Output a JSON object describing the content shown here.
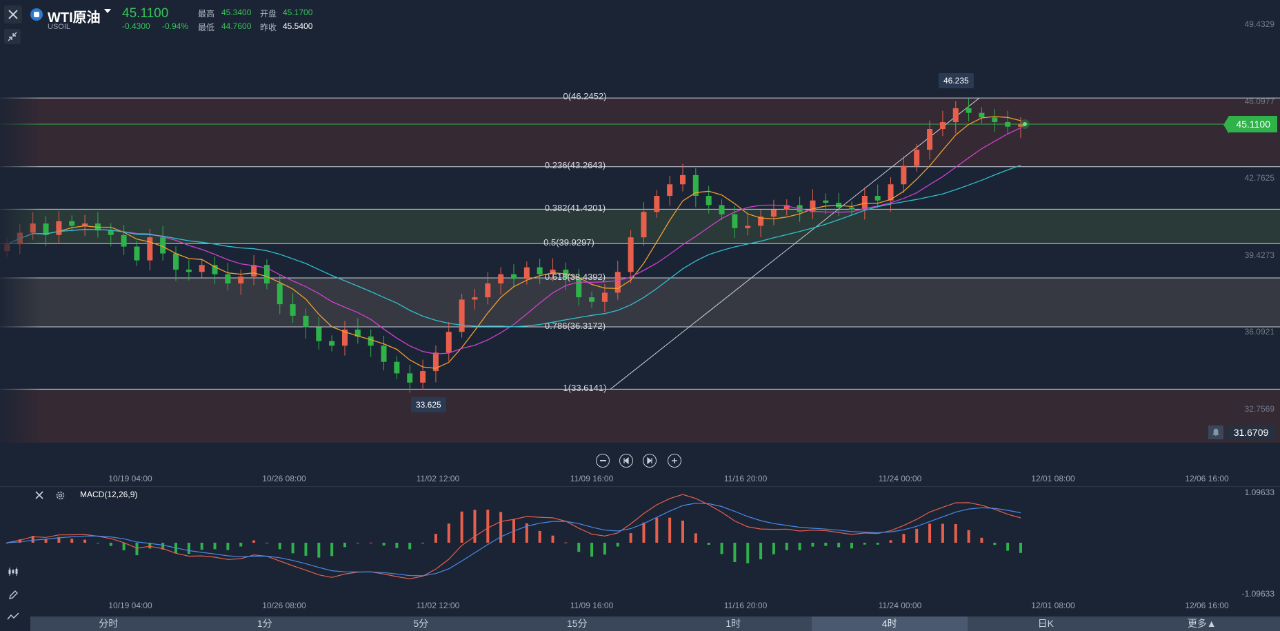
{
  "header": {
    "title": "WTI原油",
    "symbol": "USOIL",
    "price": "45.1100",
    "change": "-0.4300",
    "change_pct": "-0.94%",
    "high_label": "最高",
    "high_value": "45.3400",
    "open_label": "开盘",
    "open_value": "45.1700",
    "low_label": "最低",
    "low_value": "44.7600",
    "prev_close_label": "昨收",
    "prev_close_value": "45.5400"
  },
  "y_axis": [
    "49.4329",
    "46.0977",
    "42.7625",
    "39.4273",
    "36.0921",
    "32.7569"
  ],
  "x_axis": [
    "10/19 04:00",
    "10/26 08:00",
    "11/02 12:00",
    "11/09 16:00",
    "11/16 20:00",
    "11/24 00:00",
    "12/01 08:00",
    "12/06 16:00"
  ],
  "fibonacci": [
    {
      "label": "0(46.2452)",
      "value": 46.2452
    },
    {
      "label": "0.236(43.2643)",
      "value": 43.2643
    },
    {
      "label": "0.382(41.4201)",
      "value": 41.4201
    },
    {
      "label": "0.5(39.9297)",
      "value": 39.9297
    },
    {
      "label": "0.618(38.4392)",
      "value": 38.4392
    },
    {
      "label": "0.786(36.3172)",
      "value": 36.3172
    },
    {
      "label": "1(33.6141)",
      "value": 33.6141
    }
  ],
  "markers": {
    "high": "46.235",
    "low": "33.625"
  },
  "current_price": "45.1100",
  "alert_price": "31.6709",
  "macd": {
    "label": "MACD(12,26,9)",
    "top": "1.09633",
    "bottom": "-1.09633"
  },
  "timeframes": [
    "分时",
    "1分",
    "5分",
    "15分",
    "1时",
    "4时",
    "日K",
    "更多▲"
  ],
  "active_timeframe": "4时",
  "colors": {
    "up": "#e8604c",
    "down": "#2fb24a",
    "ma5": "#f0a030",
    "ma10": "#d040d0",
    "ma20": "#30c0d0",
    "dif": "#e8604c",
    "dea": "#4a8ae8"
  },
  "chart_data": {
    "type": "candlestick",
    "series": [
      {
        "name": "close",
        "values": [
          39.9,
          40.4,
          40.8,
          40.3,
          40.9,
          40.7,
          40.8,
          40.5,
          40.3,
          39.8,
          39.2,
          40.2,
          39.5,
          38.8,
          38.7,
          39.0,
          38.6,
          38.2,
          38.5,
          39.0,
          38.2,
          37.3,
          36.8,
          36.3,
          35.7,
          35.5,
          36.2,
          35.9,
          35.5,
          34.8,
          34.3,
          33.9,
          34.4,
          35.2,
          36.1,
          37.5,
          37.6,
          38.2,
          38.6,
          38.4,
          38.9,
          38.6,
          38.8,
          38.4,
          37.6,
          37.4,
          37.8,
          38.7,
          40.2,
          41.3,
          42.0,
          42.5,
          42.9,
          42.0,
          41.6,
          41.2,
          40.6,
          40.7,
          41.1,
          41.4,
          41.6,
          41.3,
          41.8,
          41.7,
          41.5,
          41.4,
          42.0,
          41.8,
          42.5,
          43.3,
          44.0,
          44.9,
          45.2,
          45.8,
          45.6,
          45.4,
          45.2,
          45.0,
          45.1
        ]
      }
    ]
  }
}
